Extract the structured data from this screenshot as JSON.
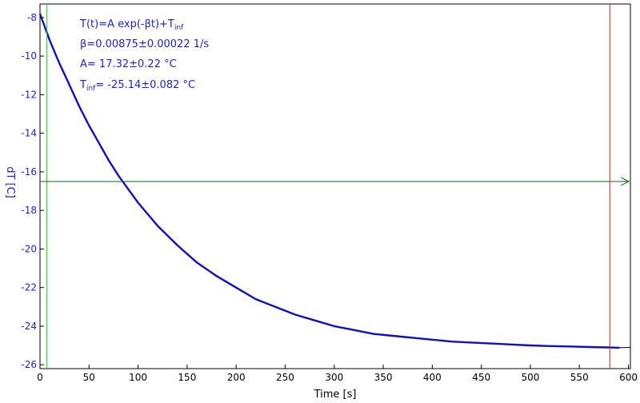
{
  "chart_data": {
    "type": "line",
    "xlabel": "Time [s]",
    "ylabel": "dT [C]",
    "xlim": [
      0,
      602
    ],
    "ylim": [
      -26.2,
      -7.3
    ],
    "x_ticks": [
      0,
      50,
      100,
      150,
      200,
      250,
      300,
      350,
      400,
      450,
      500,
      550,
      600
    ],
    "y_ticks": [
      -8,
      -10,
      -12,
      -14,
      -16,
      -18,
      -20,
      -22,
      -24,
      -26
    ],
    "grid": false,
    "series": [
      {
        "x": [
          0,
          5,
          10,
          20,
          30,
          40,
          50,
          60,
          70,
          80,
          90,
          100,
          120,
          140,
          160,
          180,
          200,
          220,
          240,
          260,
          280,
          300,
          320,
          340,
          360,
          380,
          400,
          420,
          440,
          460,
          480,
          500,
          520,
          540,
          560,
          580,
          591
        ],
        "y": [
          -7.8,
          -8.5,
          -9.2,
          -10.4,
          -11.5,
          -12.6,
          -13.6,
          -14.5,
          -15.4,
          -16.2,
          -16.9,
          -17.6,
          -18.8,
          -19.8,
          -20.7,
          -21.4,
          -22.0,
          -22.6,
          -23.0,
          -23.4,
          -23.7,
          -24.0,
          -24.2,
          -24.4,
          -24.5,
          -24.6,
          -24.7,
          -24.8,
          -24.85,
          -24.9,
          -24.95,
          -25.0,
          -25.03,
          -25.05,
          -25.08,
          -25.1,
          -25.12
        ],
        "color": "#1010c0"
      }
    ],
    "fit_line": {
      "x_end": 602,
      "y_end": -25.1,
      "color": "#000000"
    },
    "vertical_markers": [
      {
        "x": 7,
        "color": "#22cc22"
      },
      {
        "x": 581,
        "color": "#cc2222"
      }
    ],
    "horizontal_marker": {
      "y": -16.5,
      "color": "#116611"
    },
    "annotations": {
      "eq_main": "T(t)=A exp(-βt)+T",
      "eq_sub": "inf",
      "beta": "β=0.00875±0.00022 1/s",
      "amp": "A= 17.32±0.22 °C",
      "tinf_main": "T",
      "tinf_sub": "inf",
      "tinf_rest": "= -25.14±0.082 °C"
    },
    "colors": {
      "axis_text": "#1f1fd0",
      "x_axis_text": "#000000"
    }
  }
}
